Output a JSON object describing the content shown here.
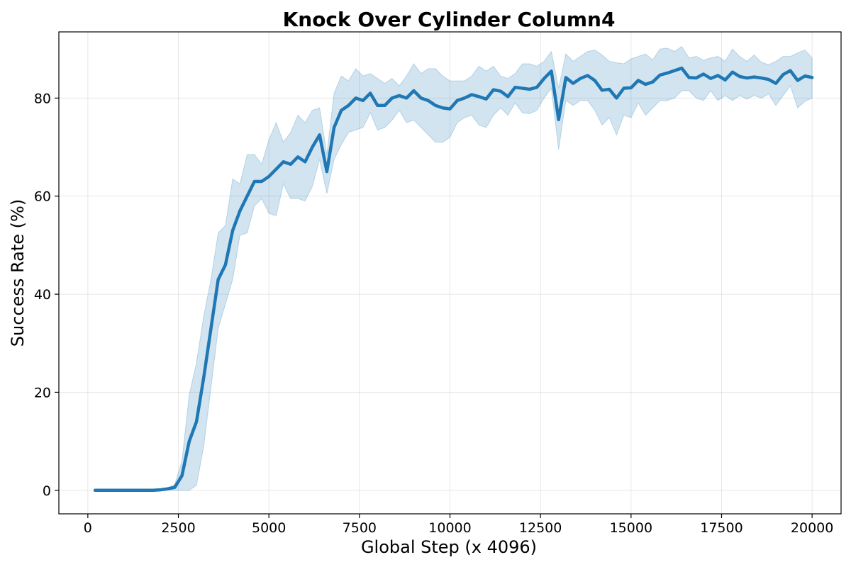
{
  "chart_data": {
    "type": "line",
    "title": "Knock Over Cylinder Column4",
    "xlabel": "Global Step (x 4096)",
    "ylabel": "Success Rate (%)",
    "xlim": [
      -800,
      20800
    ],
    "ylim": [
      -4.8,
      93.5
    ],
    "xticks": [
      0,
      2500,
      5000,
      7500,
      10000,
      12500,
      15000,
      17500,
      20000
    ],
    "yticks": [
      0,
      20,
      40,
      60,
      80
    ],
    "grid": true,
    "colors": {
      "line": "#1f77b4",
      "band": "#1f77b4"
    },
    "series": [
      {
        "x": [
          200,
          400,
          600,
          800,
          1000,
          1200,
          1400,
          1600,
          1800,
          2000,
          2200,
          2400,
          2600,
          2800,
          3000,
          3200,
          3400,
          3600,
          3800,
          4000,
          4200,
          4400,
          4600,
          4800,
          5000,
          5200,
          5400,
          5600,
          5800,
          6000,
          6200,
          6400,
          6600,
          6800,
          7000,
          7200,
          7400,
          7600,
          7800,
          8000,
          8200,
          8400,
          8600,
          8800,
          9000,
          9200,
          9400,
          9600,
          9800,
          10000,
          10200,
          10400,
          10600,
          10800,
          11000,
          11200,
          11400,
          11600,
          11800,
          12000,
          12200,
          12400,
          12600,
          12800,
          13000,
          13200,
          13400,
          13600,
          13800,
          14000,
          14200,
          14400,
          14600,
          14800,
          15000,
          15200,
          15400,
          15600,
          15800,
          16000,
          16200,
          16400,
          16600,
          16800,
          17000,
          17200,
          17400,
          17600,
          17800,
          18000,
          18200,
          18400,
          18600,
          18800,
          19000,
          19200,
          19400,
          19600,
          19800,
          20000
        ],
        "y": [
          0,
          0,
          0,
          0,
          0,
          0,
          0,
          0,
          0,
          0.1,
          0.3,
          0.6,
          3,
          10,
          14,
          23,
          33,
          43,
          46,
          53,
          57,
          60,
          63,
          63,
          64,
          65.5,
          67,
          66.5,
          68,
          67,
          70,
          72.5,
          65,
          74,
          77.5,
          78.5,
          80,
          79.5,
          81,
          78.5,
          78.5,
          80,
          80.5,
          80,
          81.5,
          80,
          79.5,
          78.5,
          78,
          77.8,
          79.5,
          80,
          80.7,
          80.3,
          79.8,
          81.7,
          81.4,
          80.3,
          82.2,
          82,
          81.8,
          82.2,
          84,
          85.5,
          75.6,
          84.2,
          83,
          84,
          84.6,
          83.6,
          81.6,
          81.8,
          80,
          82,
          82.1,
          83.6,
          82.8,
          83.3,
          84.7,
          85.1,
          85.6,
          86.1,
          84.2,
          84.1,
          84.9,
          84,
          84.6,
          83.7,
          85.3,
          84.4,
          84.1,
          84.3,
          84.1,
          83.8,
          83,
          84.8,
          85.6,
          83.6,
          84.5,
          84.2
        ],
        "lower": [
          0,
          0,
          0,
          0,
          0,
          0,
          0,
          0,
          0,
          0,
          0,
          0,
          0,
          0,
          1,
          9,
          21,
          33,
          38,
          43,
          52,
          52.5,
          58,
          59.5,
          56.5,
          56,
          62.5,
          59.5,
          59.5,
          59,
          62,
          67.5,
          60.5,
          67.5,
          70.5,
          73,
          73.5,
          74,
          77,
          73.5,
          74,
          75.5,
          77.5,
          75,
          75.5,
          74,
          72.5,
          71,
          71,
          72,
          75,
          76,
          76.5,
          74.5,
          74,
          76.5,
          78,
          76.5,
          79,
          77,
          76.8,
          77.5,
          80,
          82,
          69.5,
          79.5,
          78.5,
          79.5,
          79.5,
          77.5,
          74.5,
          76,
          72.5,
          76.5,
          76,
          79,
          76.5,
          78,
          79.5,
          79.5,
          80,
          81.5,
          81.5,
          80,
          79.5,
          81.5,
          79.5,
          80.5,
          79.5,
          80.5,
          79.8,
          80.5,
          80,
          80.8,
          78.5,
          80.5,
          82.5,
          78,
          79.3,
          80
        ],
        "upper": [
          0,
          0,
          0,
          0,
          0,
          0,
          0,
          0,
          0,
          0.2,
          0.5,
          1.2,
          6,
          19.5,
          26,
          35.5,
          43,
          52.5,
          54,
          63.5,
          62.5,
          68.5,
          68.5,
          66.5,
          71.5,
          75,
          71,
          73,
          76.5,
          75,
          77.5,
          78,
          68.5,
          81,
          84.5,
          83.5,
          86,
          84.5,
          85,
          84,
          83,
          84,
          82.5,
          84.5,
          87,
          85,
          86,
          86,
          84.5,
          83.5,
          83.5,
          83.5,
          84.5,
          86.5,
          85.5,
          86.5,
          84.5,
          84,
          85,
          87,
          87,
          86.5,
          87.5,
          89.5,
          82,
          89,
          87.5,
          88.5,
          89.5,
          89.8,
          88.8,
          87.5,
          87.2,
          87,
          88,
          88.5,
          89,
          87.8,
          90,
          90.2,
          89.5,
          90.5,
          88.2,
          88.5,
          87.7,
          88.2,
          88.5,
          87.5,
          90,
          88.5,
          87.5,
          88.8,
          87.3,
          86.8,
          87.5,
          88.5,
          88.5,
          89.2,
          89.8,
          88.2
        ]
      }
    ]
  }
}
